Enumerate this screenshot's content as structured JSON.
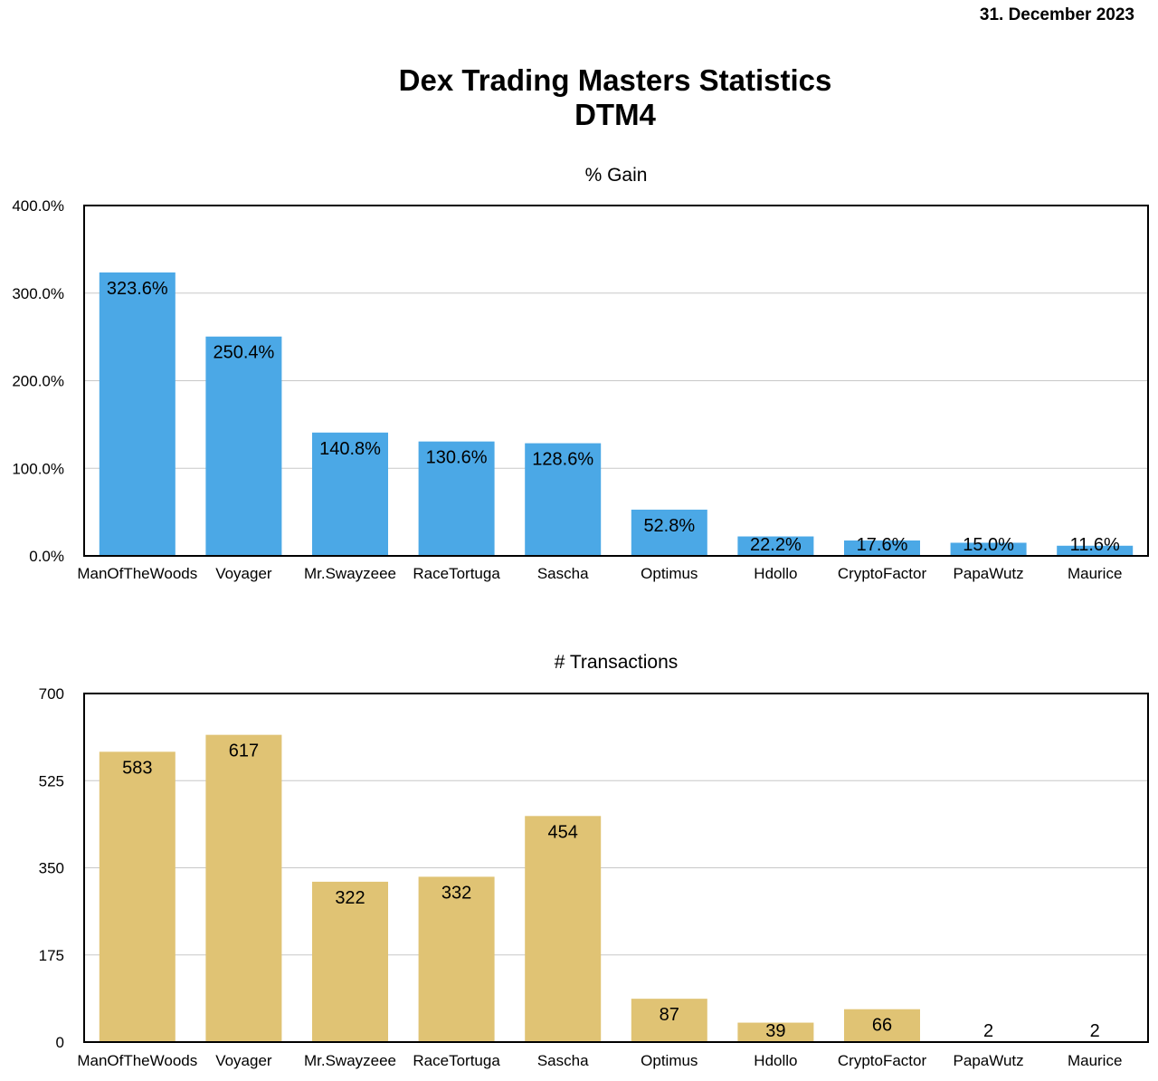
{
  "header": {
    "date": "31. December 2023",
    "title_line1": "Dex Trading Masters Statistics",
    "title_line2": "DTM4"
  },
  "chart_data": [
    {
      "type": "bar",
      "title": "% Gain",
      "categories": [
        "ManOfTheWoods",
        "Voyager",
        "Mr.Swayzeee",
        "RaceTortuga",
        "Sascha",
        "Optimus",
        "Hdollo",
        "CryptoFactor",
        "PapaWutz",
        "Maurice"
      ],
      "values": [
        323.6,
        250.4,
        140.8,
        130.6,
        128.6,
        52.8,
        22.2,
        17.6,
        15.0,
        11.6
      ],
      "data_labels": [
        "323.6%",
        "250.4%",
        "140.8%",
        "130.6%",
        "128.6%",
        "52.8%",
        "22.2%",
        "17.6%",
        "15.0%",
        "11.6%"
      ],
      "ylim": [
        0,
        400
      ],
      "yticks": [
        0,
        100,
        200,
        300,
        400
      ],
      "ytick_labels": [
        "0.0%",
        "100.0%",
        "200.0%",
        "300.0%",
        "400.0%"
      ],
      "color": "#4ba8e6",
      "grid": true
    },
    {
      "type": "bar",
      "title": "# Transactions",
      "categories": [
        "ManOfTheWoods",
        "Voyager",
        "Mr.Swayzeee",
        "RaceTortuga",
        "Sascha",
        "Optimus",
        "Hdollo",
        "CryptoFactor",
        "PapaWutz",
        "Maurice"
      ],
      "values": [
        583,
        617,
        322,
        332,
        454,
        87,
        39,
        66,
        2,
        2
      ],
      "data_labels": [
        "583",
        "617",
        "322",
        "332",
        "454",
        "87",
        "39",
        "66",
        "2",
        "2"
      ],
      "ylim": [
        0,
        700
      ],
      "yticks": [
        0,
        175,
        350,
        525,
        700
      ],
      "ytick_labels": [
        "0",
        "175",
        "350",
        "525",
        "700"
      ],
      "color": "#e0c374",
      "grid": true
    }
  ]
}
